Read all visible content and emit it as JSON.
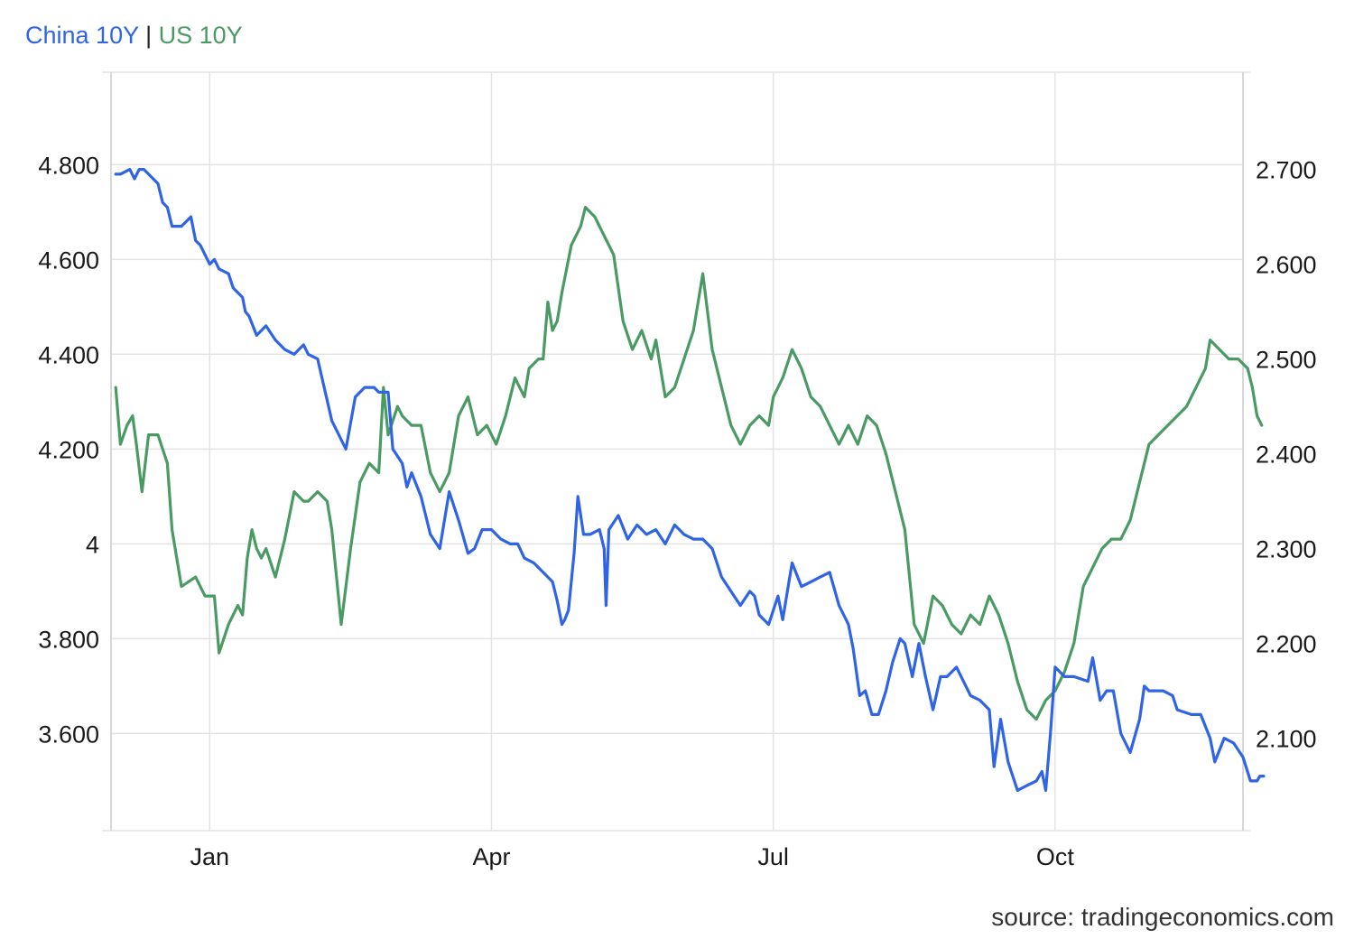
{
  "legend": {
    "separator": "|"
  },
  "source": "source: tradingeconomics.com",
  "colors": {
    "china": "#2f64e6",
    "us": "#4a9a63",
    "grid": "#e3e3e3",
    "axis": "#cccccc"
  },
  "chart_data": {
    "type": "line",
    "grid": true,
    "legend_position": "top-left",
    "x_ticks": [
      {
        "label": "Jan",
        "month_index": 1.0
      },
      {
        "label": "Apr",
        "month_index": 4.0
      },
      {
        "label": "Jul",
        "month_index": 7.0
      },
      {
        "label": "Oct",
        "month_index": 10.0
      }
    ],
    "xlim": [
      -0.05,
      12.0
    ],
    "axes": {
      "left": {
        "ylim": [
          3.395,
          4.995
        ],
        "ticks": [
          "3.600",
          "3.800",
          "4",
          "4.200",
          "4.400",
          "4.600",
          "4.800"
        ],
        "tick_values": [
          3.6,
          3.8,
          4.0,
          4.2,
          4.4,
          4.6,
          4.8
        ]
      },
      "right": {
        "ylim": [
          2.0025,
          2.8025
        ],
        "ticks": [
          "2.100",
          "2.200",
          "2.300",
          "2.400",
          "2.500",
          "2.600",
          "2.700"
        ],
        "tick_values": [
          2.1,
          2.2,
          2.3,
          2.4,
          2.5,
          2.6,
          2.7
        ]
      }
    },
    "series": [
      {
        "name": "China 10Y",
        "axis": "left",
        "color": "#2f64e6",
        "points": [
          [
            0.0,
            4.78
          ],
          [
            0.05,
            4.78
          ],
          [
            0.15,
            4.79
          ],
          [
            0.2,
            4.77
          ],
          [
            0.25,
            4.79
          ],
          [
            0.3,
            4.79
          ],
          [
            0.4,
            4.77
          ],
          [
            0.45,
            4.76
          ],
          [
            0.5,
            4.72
          ],
          [
            0.55,
            4.71
          ],
          [
            0.6,
            4.67
          ],
          [
            0.7,
            4.67
          ],
          [
            0.8,
            4.69
          ],
          [
            0.85,
            4.64
          ],
          [
            0.9,
            4.63
          ],
          [
            1.0,
            4.59
          ],
          [
            1.05,
            4.6
          ],
          [
            1.1,
            4.58
          ],
          [
            1.2,
            4.57
          ],
          [
            1.25,
            4.54
          ],
          [
            1.35,
            4.52
          ],
          [
            1.38,
            4.49
          ],
          [
            1.42,
            4.48
          ],
          [
            1.5,
            4.44
          ],
          [
            1.55,
            4.45
          ],
          [
            1.6,
            4.46
          ],
          [
            1.7,
            4.43
          ],
          [
            1.8,
            4.41
          ],
          [
            1.9,
            4.4
          ],
          [
            2.0,
            4.42
          ],
          [
            2.05,
            4.4
          ],
          [
            2.15,
            4.39
          ],
          [
            2.3,
            4.26
          ],
          [
            2.45,
            4.2
          ],
          [
            2.55,
            4.31
          ],
          [
            2.65,
            4.33
          ],
          [
            2.75,
            4.33
          ],
          [
            2.8,
            4.32
          ],
          [
            2.9,
            4.32
          ],
          [
            2.95,
            4.2
          ],
          [
            3.05,
            4.17
          ],
          [
            3.1,
            4.12
          ],
          [
            3.15,
            4.15
          ],
          [
            3.25,
            4.1
          ],
          [
            3.35,
            4.02
          ],
          [
            3.45,
            3.99
          ],
          [
            3.55,
            4.11
          ],
          [
            3.65,
            4.05
          ],
          [
            3.75,
            3.98
          ],
          [
            3.82,
            3.99
          ],
          [
            3.9,
            4.03
          ],
          [
            4.0,
            4.03
          ],
          [
            4.1,
            4.01
          ],
          [
            4.2,
            4.0
          ],
          [
            4.28,
            4.0
          ],
          [
            4.35,
            3.97
          ],
          [
            4.45,
            3.96
          ],
          [
            4.55,
            3.94
          ],
          [
            4.65,
            3.92
          ],
          [
            4.7,
            3.88
          ],
          [
            4.75,
            3.83
          ],
          [
            4.78,
            3.84
          ],
          [
            4.82,
            3.86
          ],
          [
            4.88,
            3.98
          ],
          [
            4.92,
            4.1
          ],
          [
            4.98,
            4.02
          ],
          [
            5.05,
            4.02
          ],
          [
            5.15,
            4.03
          ],
          [
            5.2,
            3.99
          ],
          [
            5.22,
            3.87
          ],
          [
            5.25,
            4.03
          ],
          [
            5.35,
            4.06
          ],
          [
            5.45,
            4.01
          ],
          [
            5.55,
            4.04
          ],
          [
            5.65,
            4.02
          ],
          [
            5.75,
            4.03
          ],
          [
            5.85,
            4.0
          ],
          [
            5.95,
            4.04
          ],
          [
            6.05,
            4.02
          ],
          [
            6.15,
            4.01
          ],
          [
            6.25,
            4.01
          ],
          [
            6.35,
            3.99
          ],
          [
            6.45,
            3.93
          ],
          [
            6.55,
            3.9
          ],
          [
            6.65,
            3.87
          ],
          [
            6.75,
            3.9
          ],
          [
            6.8,
            3.89
          ],
          [
            6.85,
            3.85
          ],
          [
            6.95,
            3.83
          ],
          [
            7.05,
            3.89
          ],
          [
            7.1,
            3.84
          ],
          [
            7.2,
            3.96
          ],
          [
            7.3,
            3.91
          ],
          [
            7.4,
            3.92
          ],
          [
            7.5,
            3.93
          ],
          [
            7.6,
            3.94
          ],
          [
            7.7,
            3.87
          ],
          [
            7.8,
            3.83
          ],
          [
            7.85,
            3.78
          ],
          [
            7.92,
            3.68
          ],
          [
            7.98,
            3.69
          ],
          [
            8.05,
            3.64
          ],
          [
            8.12,
            3.64
          ],
          [
            8.2,
            3.69
          ],
          [
            8.27,
            3.75
          ],
          [
            8.35,
            3.8
          ],
          [
            8.4,
            3.79
          ],
          [
            8.48,
            3.72
          ],
          [
            8.55,
            3.79
          ],
          [
            8.62,
            3.72
          ],
          [
            8.7,
            3.65
          ],
          [
            8.78,
            3.72
          ],
          [
            8.85,
            3.72
          ],
          [
            8.95,
            3.74
          ],
          [
            9.05,
            3.7
          ],
          [
            9.1,
            3.68
          ],
          [
            9.2,
            3.67
          ],
          [
            9.3,
            3.65
          ],
          [
            9.35,
            3.53
          ],
          [
            9.42,
            3.63
          ],
          [
            9.5,
            3.54
          ],
          [
            9.6,
            3.48
          ],
          [
            9.7,
            3.49
          ],
          [
            9.8,
            3.5
          ],
          [
            9.86,
            3.52
          ],
          [
            9.9,
            3.48
          ],
          [
            9.95,
            3.6
          ],
          [
            10.0,
            3.74
          ],
          [
            10.1,
            3.72
          ],
          [
            10.2,
            3.72
          ],
          [
            10.35,
            3.71
          ],
          [
            10.4,
            3.76
          ],
          [
            10.48,
            3.67
          ],
          [
            10.55,
            3.69
          ],
          [
            10.62,
            3.69
          ],
          [
            10.7,
            3.6
          ],
          [
            10.8,
            3.56
          ],
          [
            10.9,
            3.63
          ],
          [
            10.95,
            3.7
          ],
          [
            11.0,
            3.69
          ],
          [
            11.15,
            3.69
          ],
          [
            11.25,
            3.68
          ],
          [
            11.3,
            3.65
          ],
          [
            11.45,
            3.64
          ],
          [
            11.55,
            3.64
          ],
          [
            11.65,
            3.59
          ],
          [
            11.7,
            3.54
          ],
          [
            11.8,
            3.59
          ],
          [
            11.9,
            3.58
          ],
          [
            12.0,
            3.55
          ],
          [
            12.08,
            3.5
          ],
          [
            12.15,
            3.5
          ],
          [
            12.18,
            3.51
          ],
          [
            12.22,
            3.51
          ]
        ]
      },
      {
        "name": "US 10Y",
        "axis": "right",
        "color": "#4a9a63",
        "points": [
          [
            0.0,
            2.47
          ],
          [
            0.05,
            2.41
          ],
          [
            0.12,
            2.43
          ],
          [
            0.18,
            2.44
          ],
          [
            0.22,
            2.41
          ],
          [
            0.28,
            2.36
          ],
          [
            0.35,
            2.42
          ],
          [
            0.45,
            2.42
          ],
          [
            0.55,
            2.39
          ],
          [
            0.6,
            2.32
          ],
          [
            0.7,
            2.26
          ],
          [
            0.85,
            2.27
          ],
          [
            0.95,
            2.25
          ],
          [
            1.05,
            2.25
          ],
          [
            1.1,
            2.19
          ],
          [
            1.2,
            2.22
          ],
          [
            1.3,
            2.24
          ],
          [
            1.35,
            2.23
          ],
          [
            1.4,
            2.29
          ],
          [
            1.45,
            2.32
          ],
          [
            1.5,
            2.3
          ],
          [
            1.55,
            2.29
          ],
          [
            1.6,
            2.3
          ],
          [
            1.7,
            2.27
          ],
          [
            1.8,
            2.31
          ],
          [
            1.9,
            2.36
          ],
          [
            2.0,
            2.35
          ],
          [
            2.05,
            2.35
          ],
          [
            2.15,
            2.36
          ],
          [
            2.25,
            2.35
          ],
          [
            2.3,
            2.32
          ],
          [
            2.4,
            2.22
          ],
          [
            2.5,
            2.3
          ],
          [
            2.6,
            2.37
          ],
          [
            2.7,
            2.39
          ],
          [
            2.8,
            2.38
          ],
          [
            2.85,
            2.47
          ],
          [
            2.9,
            2.42
          ],
          [
            3.0,
            2.45
          ],
          [
            3.05,
            2.44
          ],
          [
            3.15,
            2.43
          ],
          [
            3.25,
            2.43
          ],
          [
            3.35,
            2.38
          ],
          [
            3.45,
            2.36
          ],
          [
            3.55,
            2.38
          ],
          [
            3.65,
            2.44
          ],
          [
            3.75,
            2.46
          ],
          [
            3.85,
            2.42
          ],
          [
            3.95,
            2.43
          ],
          [
            4.05,
            2.41
          ],
          [
            4.15,
            2.44
          ],
          [
            4.25,
            2.48
          ],
          [
            4.35,
            2.46
          ],
          [
            4.4,
            2.49
          ],
          [
            4.5,
            2.5
          ],
          [
            4.55,
            2.5
          ],
          [
            4.6,
            2.56
          ],
          [
            4.65,
            2.53
          ],
          [
            4.7,
            2.54
          ],
          [
            4.75,
            2.57
          ],
          [
            4.85,
            2.62
          ],
          [
            4.9,
            2.63
          ],
          [
            4.95,
            2.64
          ],
          [
            5.0,
            2.66
          ],
          [
            5.1,
            2.65
          ],
          [
            5.2,
            2.63
          ],
          [
            5.3,
            2.61
          ],
          [
            5.4,
            2.54
          ],
          [
            5.5,
            2.51
          ],
          [
            5.6,
            2.53
          ],
          [
            5.7,
            2.5
          ],
          [
            5.75,
            2.52
          ],
          [
            5.85,
            2.46
          ],
          [
            5.95,
            2.47
          ],
          [
            6.05,
            2.5
          ],
          [
            6.15,
            2.53
          ],
          [
            6.25,
            2.59
          ],
          [
            6.35,
            2.51
          ],
          [
            6.45,
            2.47
          ],
          [
            6.55,
            2.43
          ],
          [
            6.65,
            2.41
          ],
          [
            6.75,
            2.43
          ],
          [
            6.85,
            2.44
          ],
          [
            6.95,
            2.43
          ],
          [
            7.0,
            2.46
          ],
          [
            7.1,
            2.48
          ],
          [
            7.2,
            2.51
          ],
          [
            7.3,
            2.49
          ],
          [
            7.4,
            2.46
          ],
          [
            7.5,
            2.45
          ],
          [
            7.6,
            2.43
          ],
          [
            7.7,
            2.41
          ],
          [
            7.8,
            2.43
          ],
          [
            7.9,
            2.41
          ],
          [
            8.0,
            2.44
          ],
          [
            8.1,
            2.43
          ],
          [
            8.2,
            2.4
          ],
          [
            8.3,
            2.36
          ],
          [
            8.4,
            2.32
          ],
          [
            8.5,
            2.22
          ],
          [
            8.6,
            2.2
          ],
          [
            8.7,
            2.25
          ],
          [
            8.8,
            2.24
          ],
          [
            8.9,
            2.22
          ],
          [
            9.0,
            2.21
          ],
          [
            9.1,
            2.23
          ],
          [
            9.2,
            2.22
          ],
          [
            9.3,
            2.25
          ],
          [
            9.4,
            2.23
          ],
          [
            9.5,
            2.2
          ],
          [
            9.6,
            2.16
          ],
          [
            9.7,
            2.13
          ],
          [
            9.8,
            2.12
          ],
          [
            9.9,
            2.14
          ],
          [
            10.0,
            2.15
          ],
          [
            10.1,
            2.17
          ],
          [
            10.2,
            2.2
          ],
          [
            10.3,
            2.26
          ],
          [
            10.4,
            2.28
          ],
          [
            10.5,
            2.3
          ],
          [
            10.6,
            2.31
          ],
          [
            10.7,
            2.31
          ],
          [
            10.8,
            2.33
          ],
          [
            10.9,
            2.37
          ],
          [
            11.0,
            2.41
          ],
          [
            11.1,
            2.42
          ],
          [
            11.2,
            2.43
          ],
          [
            11.3,
            2.44
          ],
          [
            11.4,
            2.45
          ],
          [
            11.5,
            2.47
          ],
          [
            11.6,
            2.49
          ],
          [
            11.65,
            2.52
          ],
          [
            11.75,
            2.51
          ],
          [
            11.85,
            2.5
          ],
          [
            11.95,
            2.5
          ],
          [
            12.05,
            2.49
          ],
          [
            12.1,
            2.47
          ],
          [
            12.15,
            2.44
          ],
          [
            12.2,
            2.43
          ]
        ]
      }
    ]
  }
}
